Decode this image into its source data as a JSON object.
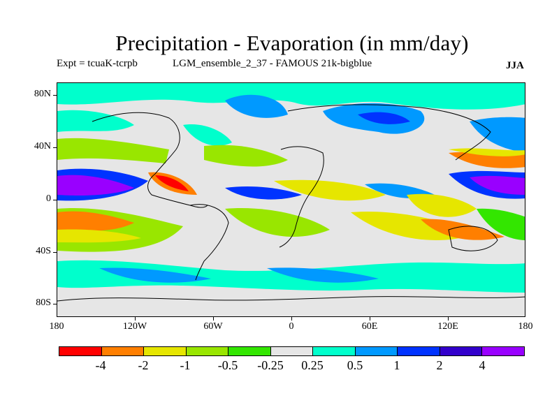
{
  "title": "Precipitation - Evaporation (in mm/day)",
  "subtitle_left": "Expt = tcuaK-tcrpb",
  "subtitle_mid": "LGM_ensemble_2_37 - FAMOUS 21k-bigblue",
  "season": "JJA",
  "y_axis_labels": [
    "80N",
    "40N",
    "0",
    "40S",
    "80S"
  ],
  "x_axis_labels": [
    "180",
    "120W",
    "60W",
    "0",
    "60E",
    "120E",
    "180"
  ],
  "colorbar": {
    "colors": [
      "#ff0000",
      "#ff7f00",
      "#e6e600",
      "#99e600",
      "#33e600",
      "#e6e6e6",
      "#00ffcc",
      "#0099ff",
      "#0033ff",
      "#3300cc",
      "#9900ff"
    ],
    "labels": [
      "-4",
      "-2",
      "-1",
      "-0.5",
      "-0.25",
      "0.25",
      "0.5",
      "1",
      "2",
      "4"
    ]
  }
}
